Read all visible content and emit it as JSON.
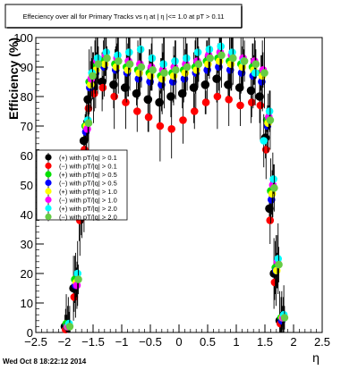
{
  "footer": {
    "timestamp": "Wed Oct  8 18:22:12 2014"
  },
  "chart_data": {
    "type": "scatter",
    "title": "Effeciency over all for Primary Tracks vs  η at | η |<= 1.0 at pT > 0.11",
    "xlabel": "η",
    "ylabel": "Efficiency (%)",
    "xlim": [
      -2.5,
      2.5
    ],
    "ylim": [
      0,
      100
    ],
    "xticks": [
      -2.5,
      -2,
      -1.5,
      -1,
      -0.5,
      0,
      0.5,
      1,
      1.5,
      2,
      2.5
    ],
    "xtick_labels": [
      "−2.5",
      "−2",
      "−1.5",
      "−1",
      "−0.5",
      "0",
      "0.5",
      "1",
      "1.5",
      "2",
      "2.5"
    ],
    "yticks": [
      0,
      10,
      20,
      30,
      40,
      50,
      60,
      70,
      80,
      90,
      100
    ],
    "ytick_labels": [
      "0",
      "10",
      "20",
      "30",
      "40",
      "50",
      "60",
      "70",
      "80",
      "90",
      "100"
    ],
    "grid": false,
    "legend_position": "middle-left",
    "series": [
      {
        "name": "(+) with pT/|q| > 0.1",
        "color": "#000000",
        "x": [
          -1.95,
          -1.8,
          -1.7,
          -1.62,
          -1.55,
          -1.45,
          -1.3,
          -1.1,
          -0.9,
          -0.7,
          -0.5,
          -0.3,
          -0.1,
          0.1,
          0.3,
          0.5,
          0.7,
          0.9,
          1.1,
          1.3,
          1.45,
          1.55,
          1.62,
          1.7,
          1.8
        ],
        "y": [
          2,
          15,
          40,
          65,
          79,
          83,
          85,
          84,
          83,
          81,
          79,
          78,
          80,
          81,
          83,
          84,
          86,
          84,
          83,
          82,
          80,
          66,
          42,
          20,
          4
        ]
      },
      {
        "name": "(−) with pT/|q| > 0.1",
        "color": "#ff0000",
        "x": [
          -1.95,
          -1.8,
          -1.7,
          -1.62,
          -1.55,
          -1.45,
          -1.3,
          -1.1,
          -0.9,
          -0.7,
          -0.5,
          -0.3,
          -0.1,
          0.1,
          0.3,
          0.5,
          0.7,
          0.9,
          1.1,
          1.3,
          1.45,
          1.55,
          1.62,
          1.7,
          1.8
        ],
        "y": [
          1,
          12,
          38,
          62,
          76,
          81,
          83,
          80,
          78,
          75,
          73,
          70,
          69,
          72,
          75,
          78,
          80,
          79,
          77,
          78,
          77,
          62,
          38,
          17,
          3
        ]
      },
      {
        "name": "(+) with pT/|q| > 0.5",
        "color": "#00e000",
        "x": [
          -1.95,
          -1.8,
          -1.7,
          -1.62,
          -1.55,
          -1.45,
          -1.3,
          -1.1,
          -0.9,
          -0.7,
          -0.5,
          -0.3,
          -0.1,
          0.1,
          0.3,
          0.5,
          0.7,
          0.9,
          1.1,
          1.3,
          1.45,
          1.55,
          1.62,
          1.7,
          1.8
        ],
        "y": [
          3,
          18,
          45,
          70,
          85,
          90,
          92,
          91,
          90,
          89,
          88,
          87,
          88,
          89,
          90,
          92,
          93,
          92,
          91,
          90,
          88,
          72,
          48,
          22,
          5
        ]
      },
      {
        "name": "(−) with pT/|q| > 0.5",
        "color": "#0000ff",
        "x": [
          -1.95,
          -1.8,
          -1.7,
          -1.62,
          -1.55,
          -1.45,
          -1.3,
          -1.1,
          -0.9,
          -0.7,
          -0.5,
          -0.3,
          -0.1,
          0.1,
          0.3,
          0.5,
          0.7,
          0.9,
          1.1,
          1.3,
          1.45,
          1.55,
          1.62,
          1.7,
          1.8
        ],
        "y": [
          2,
          16,
          42,
          68,
          83,
          88,
          90,
          89,
          88,
          86,
          85,
          84,
          85,
          86,
          88,
          89,
          90,
          89,
          88,
          87,
          85,
          70,
          45,
          21,
          4
        ]
      },
      {
        "name": "(+) with pT/|q| > 1.0",
        "color": "#ffff00",
        "x": [
          -1.95,
          -1.8,
          -1.7,
          -1.62,
          -1.55,
          -1.45,
          -1.3,
          -1.1,
          -0.9,
          -0.7,
          -0.5,
          -0.3,
          -0.1,
          0.1,
          0.3,
          0.5,
          0.7,
          0.9,
          1.1,
          1.3,
          1.45,
          1.55,
          1.62,
          1.7,
          1.8
        ],
        "y": [
          2,
          17,
          44,
          70,
          84,
          89,
          91,
          90,
          89,
          88,
          87,
          86,
          87,
          88,
          89,
          91,
          92,
          91,
          90,
          89,
          87,
          71,
          47,
          21,
          5
        ]
      },
      {
        "name": "(−) with pT/|q| > 1.0",
        "color": "#ff00ff",
        "x": [
          -1.95,
          -1.8,
          -1.7,
          -1.62,
          -1.55,
          -1.45,
          -1.3,
          -1.1,
          -0.9,
          -0.7,
          -0.5,
          -0.3,
          -0.1,
          0.1,
          0.3,
          0.5,
          0.7,
          0.9,
          1.1,
          1.3,
          1.45,
          1.55,
          1.62,
          1.7,
          1.8
        ],
        "y": [
          2,
          16,
          43,
          69,
          86,
          92,
          94,
          93,
          92,
          91,
          90,
          89,
          90,
          91,
          92,
          94,
          95,
          94,
          93,
          92,
          89,
          73,
          50,
          24,
          5
        ]
      },
      {
        "name": "(+) with pT/|q| > 2.0",
        "color": "#00ffff",
        "x": [
          -1.95,
          -1.8,
          -1.7,
          -1.62,
          -1.55,
          -1.45,
          -1.3,
          -1.1,
          -0.9,
          -0.7,
          -0.5,
          -0.3,
          -0.1,
          0.1,
          0.3,
          0.5,
          0.7,
          0.9,
          1.1,
          1.3,
          1.45,
          1.55,
          1.62,
          1.7,
          1.8
        ],
        "y": [
          3,
          20,
          47,
          72,
          88,
          93,
          95,
          94,
          95,
          96,
          93,
          91,
          92,
          93,
          95,
          96,
          97,
          95,
          92,
          88,
          65,
          75,
          52,
          25,
          6
        ]
      },
      {
        "name": "(−) with pT/|q| > 2.0",
        "color": "#66cc44",
        "x": [
          -1.95,
          -1.8,
          -1.7,
          -1.62,
          -1.55,
          -1.45,
          -1.3,
          -1.1,
          -0.9,
          -0.7,
          -0.5,
          -0.3,
          -0.1,
          0.1,
          0.3,
          0.5,
          0.7,
          0.9,
          1.1,
          1.3,
          1.45,
          1.55,
          1.62,
          1.7,
          1.8
        ],
        "y": [
          2,
          18,
          46,
          71,
          87,
          91,
          93,
          92,
          91,
          90,
          89,
          88,
          89,
          90,
          91,
          93,
          94,
          93,
          92,
          91,
          88,
          72,
          49,
          23,
          5
        ]
      }
    ]
  }
}
